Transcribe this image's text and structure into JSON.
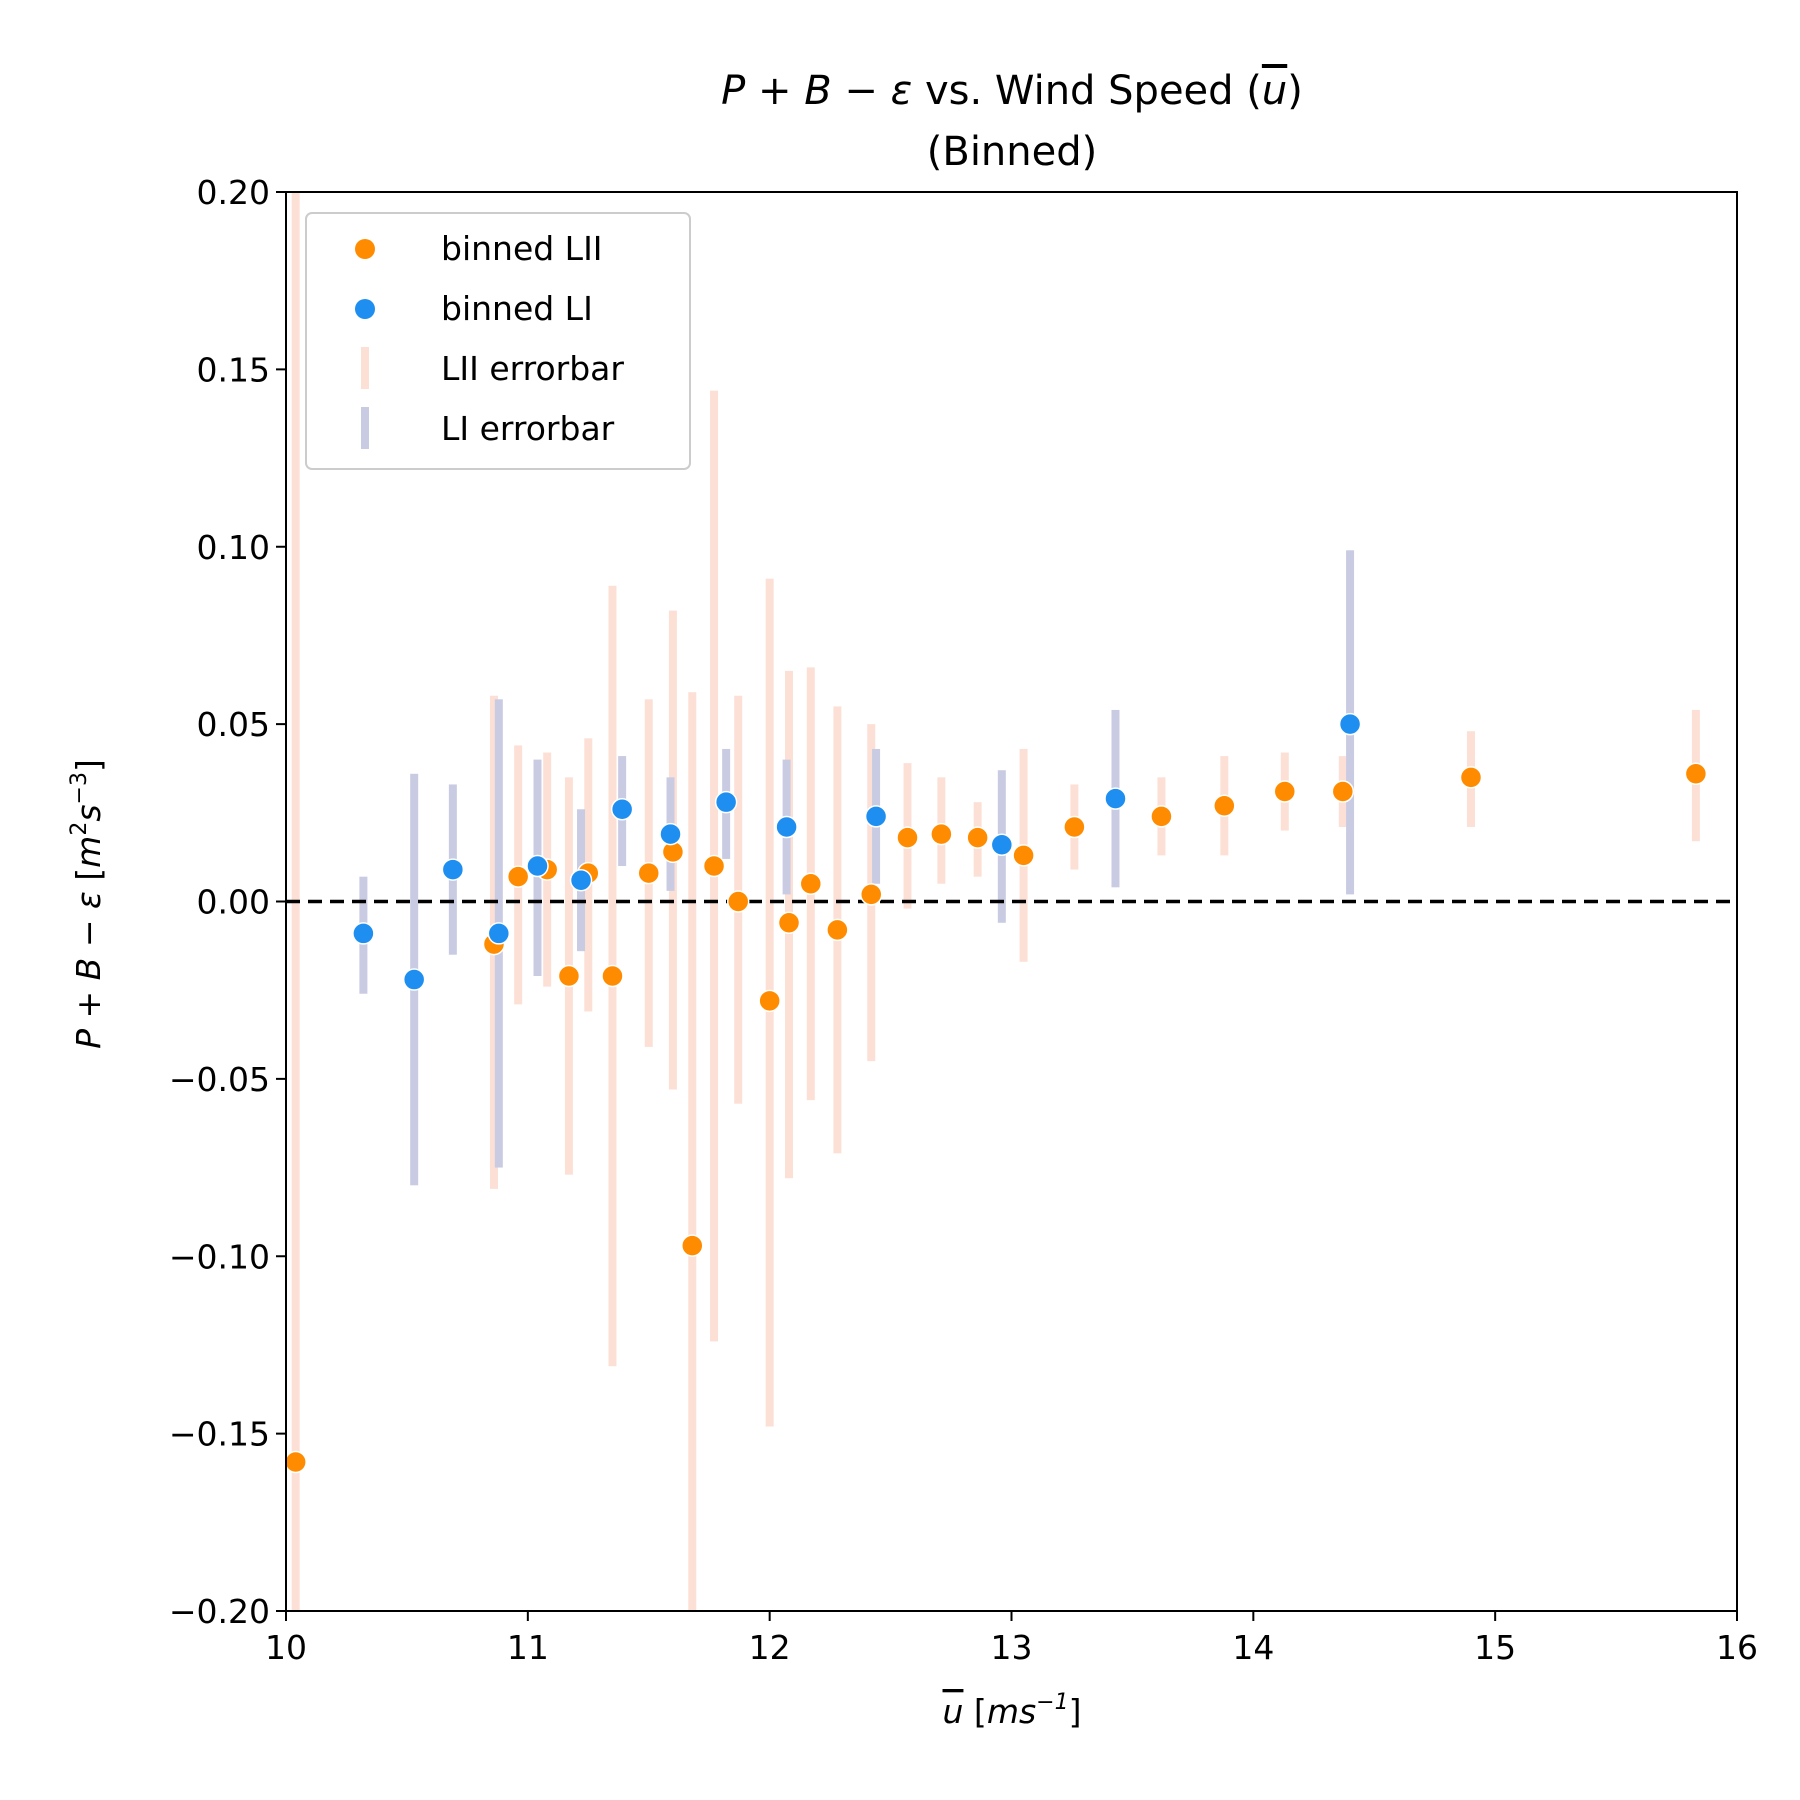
{
  "chart_data": {
    "type": "scatter",
    "title": "P + B − ε vs. Wind Speed (u)",
    "subtitle": "(Binned)",
    "xlabel": "u [ms⁻¹]",
    "ylabel": "P + B − ε [m²s⁻³]",
    "xlim": [
      10,
      16
    ],
    "ylim": [
      -0.2,
      0.2
    ],
    "xticks": [
      10,
      11,
      12,
      13,
      14,
      15,
      16
    ],
    "xtick_labels": [
      "10",
      "11",
      "12",
      "13",
      "14",
      "15",
      "16"
    ],
    "yticks": [
      -0.2,
      -0.15,
      -0.1,
      -0.05,
      0.0,
      0.05,
      0.1,
      0.15,
      0.2
    ],
    "ytick_labels": [
      "−0.20",
      "−0.15",
      "−0.10",
      "−0.05",
      "0.00",
      "0.05",
      "0.10",
      "0.15",
      "0.20"
    ],
    "reference_line": {
      "y": 0.0,
      "style": "dashed",
      "color": "#000000"
    },
    "grid": false,
    "legend_position": "upper-left",
    "legend": [
      {
        "label": "binned LII",
        "kind": "marker",
        "color": "#ff8c00"
      },
      {
        "label": "binned LI",
        "kind": "marker",
        "color": "#1e8ff0"
      },
      {
        "label": "LII errorbar",
        "kind": "bar",
        "color": "#fce0d6"
      },
      {
        "label": "LI errorbar",
        "kind": "bar",
        "color": "#c9cbe3"
      }
    ],
    "series": [
      {
        "name": "binned LII",
        "color": "#ff8c00",
        "points": [
          {
            "x": 10.04,
            "y": -0.158
          },
          {
            "x": 10.86,
            "y": -0.012
          },
          {
            "x": 10.96,
            "y": 0.007
          },
          {
            "x": 11.08,
            "y": 0.009
          },
          {
            "x": 11.17,
            "y": -0.021
          },
          {
            "x": 11.25,
            "y": 0.008
          },
          {
            "x": 11.35,
            "y": -0.021
          },
          {
            "x": 11.5,
            "y": 0.008
          },
          {
            "x": 11.6,
            "y": 0.014
          },
          {
            "x": 11.68,
            "y": -0.097
          },
          {
            "x": 11.77,
            "y": 0.01
          },
          {
            "x": 11.87,
            "y": 0.0
          },
          {
            "x": 12.0,
            "y": -0.028
          },
          {
            "x": 12.08,
            "y": -0.006
          },
          {
            "x": 12.17,
            "y": 0.005
          },
          {
            "x": 12.28,
            "y": -0.008
          },
          {
            "x": 12.42,
            "y": 0.002
          },
          {
            "x": 12.57,
            "y": 0.018
          },
          {
            "x": 12.71,
            "y": 0.019
          },
          {
            "x": 12.86,
            "y": 0.018
          },
          {
            "x": 13.05,
            "y": 0.013
          },
          {
            "x": 13.26,
            "y": 0.021
          },
          {
            "x": 13.62,
            "y": 0.024
          },
          {
            "x": 13.88,
            "y": 0.027
          },
          {
            "x": 14.13,
            "y": 0.031
          },
          {
            "x": 14.37,
            "y": 0.031
          },
          {
            "x": 14.9,
            "y": 0.035
          },
          {
            "x": 15.83,
            "y": 0.036
          }
        ]
      },
      {
        "name": "binned LI",
        "color": "#1e8ff0",
        "points": [
          {
            "x": 10.32,
            "y": -0.009
          },
          {
            "x": 10.53,
            "y": -0.022
          },
          {
            "x": 10.69,
            "y": 0.009
          },
          {
            "x": 10.88,
            "y": -0.009
          },
          {
            "x": 11.04,
            "y": 0.01
          },
          {
            "x": 11.22,
            "y": 0.006
          },
          {
            "x": 11.39,
            "y": 0.026
          },
          {
            "x": 11.59,
            "y": 0.019
          },
          {
            "x": 11.82,
            "y": 0.028
          },
          {
            "x": 12.07,
            "y": 0.021
          },
          {
            "x": 12.44,
            "y": 0.024
          },
          {
            "x": 12.96,
            "y": 0.016
          },
          {
            "x": 13.43,
            "y": 0.029
          },
          {
            "x": 14.4,
            "y": 0.05
          }
        ]
      },
      {
        "name": "LII errorbar",
        "color": "#fce0d6",
        "bars": [
          {
            "x": 10.04,
            "low": -0.2,
            "high": 0.2
          },
          {
            "x": 10.86,
            "low": -0.081,
            "high": 0.058
          },
          {
            "x": 10.96,
            "low": -0.029,
            "high": 0.044
          },
          {
            "x": 11.08,
            "low": -0.024,
            "high": 0.042
          },
          {
            "x": 11.17,
            "low": -0.077,
            "high": 0.035
          },
          {
            "x": 11.25,
            "low": -0.031,
            "high": 0.046
          },
          {
            "x": 11.35,
            "low": -0.131,
            "high": 0.089
          },
          {
            "x": 11.5,
            "low": -0.041,
            "high": 0.057
          },
          {
            "x": 11.6,
            "low": -0.053,
            "high": 0.082
          },
          {
            "x": 11.68,
            "low": -0.2,
            "high": 0.059
          },
          {
            "x": 11.77,
            "low": -0.124,
            "high": 0.144
          },
          {
            "x": 11.87,
            "low": -0.057,
            "high": 0.058
          },
          {
            "x": 12.0,
            "low": -0.148,
            "high": 0.091
          },
          {
            "x": 12.08,
            "low": -0.078,
            "high": 0.065
          },
          {
            "x": 12.17,
            "low": -0.056,
            "high": 0.066
          },
          {
            "x": 12.28,
            "low": -0.071,
            "high": 0.055
          },
          {
            "x": 12.42,
            "low": -0.045,
            "high": 0.05
          },
          {
            "x": 12.57,
            "low": -0.002,
            "high": 0.039
          },
          {
            "x": 12.71,
            "low": 0.005,
            "high": 0.035
          },
          {
            "x": 12.86,
            "low": 0.007,
            "high": 0.028
          },
          {
            "x": 13.05,
            "low": -0.017,
            "high": 0.043
          },
          {
            "x": 13.26,
            "low": 0.009,
            "high": 0.033
          },
          {
            "x": 13.62,
            "low": 0.013,
            "high": 0.035
          },
          {
            "x": 13.88,
            "low": 0.013,
            "high": 0.041
          },
          {
            "x": 14.13,
            "low": 0.02,
            "high": 0.042
          },
          {
            "x": 14.37,
            "low": 0.021,
            "high": 0.041
          },
          {
            "x": 14.9,
            "low": 0.021,
            "high": 0.048
          },
          {
            "x": 15.83,
            "low": 0.017,
            "high": 0.054
          }
        ]
      },
      {
        "name": "LI errorbar",
        "color": "#c9cbe3",
        "bars": [
          {
            "x": 10.32,
            "low": -0.026,
            "high": 0.007
          },
          {
            "x": 10.53,
            "low": -0.08,
            "high": 0.036
          },
          {
            "x": 10.69,
            "low": -0.015,
            "high": 0.033
          },
          {
            "x": 10.88,
            "low": -0.075,
            "high": 0.057
          },
          {
            "x": 11.04,
            "low": -0.021,
            "high": 0.04
          },
          {
            "x": 11.22,
            "low": -0.014,
            "high": 0.026
          },
          {
            "x": 11.39,
            "low": 0.01,
            "high": 0.041
          },
          {
            "x": 11.59,
            "low": 0.003,
            "high": 0.035
          },
          {
            "x": 11.82,
            "low": 0.012,
            "high": 0.043
          },
          {
            "x": 12.07,
            "low": 0.002,
            "high": 0.04
          },
          {
            "x": 12.44,
            "low": 0.005,
            "high": 0.043
          },
          {
            "x": 12.96,
            "low": -0.006,
            "high": 0.037
          },
          {
            "x": 13.43,
            "low": 0.004,
            "high": 0.054
          },
          {
            "x": 14.4,
            "low": 0.002,
            "high": 0.099
          }
        ]
      }
    ]
  }
}
